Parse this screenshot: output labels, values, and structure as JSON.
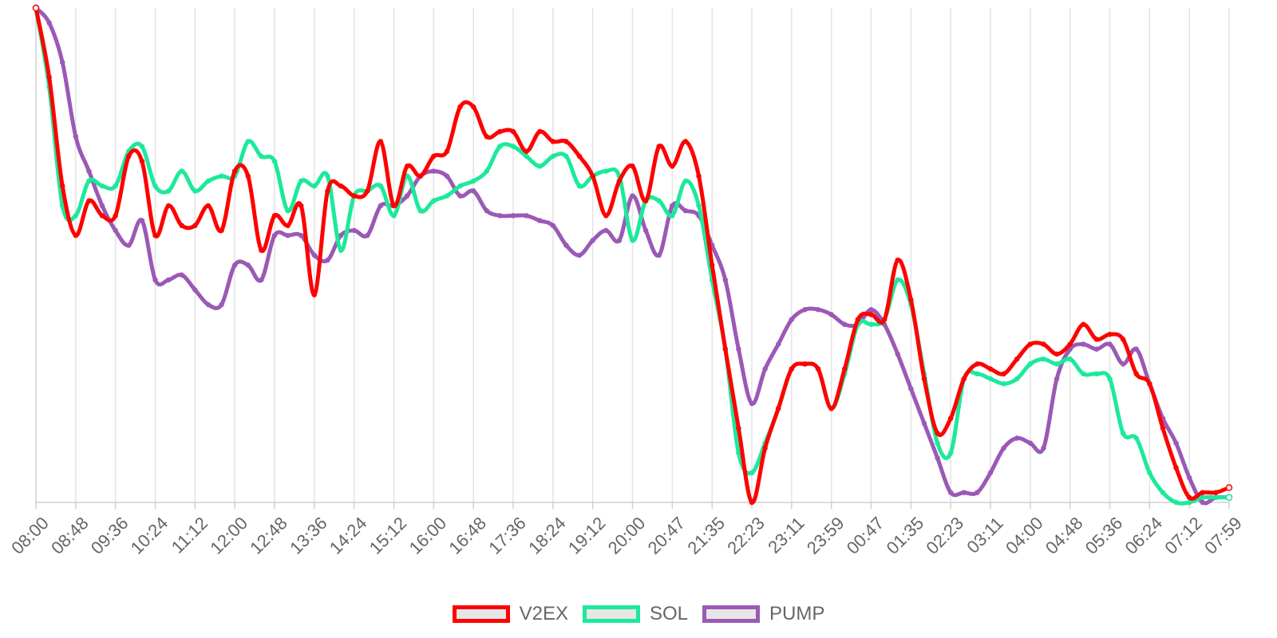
{
  "chart_data": {
    "type": "line",
    "x_ticks": [
      "08:00",
      "08:48",
      "09:36",
      "10:24",
      "11:12",
      "12:00",
      "12:48",
      "13:36",
      "14:24",
      "15:12",
      "16:00",
      "16:48",
      "17:36",
      "18:24",
      "19:12",
      "20:00",
      "20:47",
      "21:35",
      "22:23",
      "23:11",
      "23:59",
      "00:47",
      "01:35",
      "02:23",
      "03:11",
      "04:00",
      "04:48",
      "05:36",
      "06:24",
      "07:12",
      "07:59"
    ],
    "grid": true,
    "legend_position": "bottom",
    "series": [
      {
        "name": "V2EX",
        "color": "#ff0000",
        "values": [
          1.0,
          0.86,
          0.64,
          0.54,
          0.61,
          0.58,
          0.58,
          0.7,
          0.69,
          0.54,
          0.6,
          0.56,
          0.56,
          0.6,
          0.55,
          0.67,
          0.66,
          0.51,
          0.58,
          0.56,
          0.6,
          0.42,
          0.63,
          0.64,
          0.62,
          0.63,
          0.73,
          0.6,
          0.68,
          0.66,
          0.7,
          0.71,
          0.8,
          0.8,
          0.74,
          0.75,
          0.75,
          0.71,
          0.75,
          0.73,
          0.73,
          0.7,
          0.66,
          0.58,
          0.65,
          0.68,
          0.61,
          0.72,
          0.68,
          0.73,
          0.66,
          0.48,
          0.31,
          0.15,
          0.0,
          0.11,
          0.19,
          0.27,
          0.28,
          0.27,
          0.19,
          0.27,
          0.37,
          0.38,
          0.37,
          0.49,
          0.41,
          0.25,
          0.14,
          0.17,
          0.25,
          0.28,
          0.27,
          0.26,
          0.29,
          0.32,
          0.32,
          0.3,
          0.32,
          0.36,
          0.33,
          0.34,
          0.33,
          0.26,
          0.24,
          0.15,
          0.07,
          0.01,
          0.02,
          0.02,
          0.03
        ],
        "points_markers": true
      },
      {
        "name": "SOL",
        "color": "#1de99b",
        "values": [
          1.0,
          0.84,
          0.6,
          0.58,
          0.65,
          0.64,
          0.64,
          0.71,
          0.72,
          0.64,
          0.63,
          0.67,
          0.63,
          0.65,
          0.66,
          0.66,
          0.73,
          0.7,
          0.69,
          0.59,
          0.65,
          0.64,
          0.66,
          0.51,
          0.62,
          0.63,
          0.64,
          0.58,
          0.66,
          0.59,
          0.61,
          0.62,
          0.64,
          0.65,
          0.67,
          0.72,
          0.72,
          0.7,
          0.68,
          0.7,
          0.7,
          0.64,
          0.66,
          0.67,
          0.66,
          0.53,
          0.61,
          0.61,
          0.58,
          0.65,
          0.6,
          0.45,
          0.31,
          0.1,
          0.06,
          0.12,
          0.19,
          0.27,
          0.28,
          0.27,
          0.19,
          0.26,
          0.36,
          0.36,
          0.37,
          0.45,
          0.4,
          0.26,
          0.12,
          0.1,
          0.25,
          0.26,
          0.25,
          0.24,
          0.25,
          0.28,
          0.29,
          0.28,
          0.29,
          0.26,
          0.26,
          0.25,
          0.14,
          0.13,
          0.06,
          0.02,
          0.0,
          0.0,
          0.01,
          0.01,
          0.01
        ],
        "points_markers": true
      },
      {
        "name": "PUMP",
        "color": "#9b59b6",
        "values": [
          1.0,
          0.97,
          0.89,
          0.74,
          0.67,
          0.6,
          0.55,
          0.52,
          0.57,
          0.45,
          0.45,
          0.46,
          0.43,
          0.4,
          0.4,
          0.48,
          0.48,
          0.45,
          0.54,
          0.54,
          0.54,
          0.5,
          0.49,
          0.54,
          0.55,
          0.54,
          0.6,
          0.6,
          0.62,
          0.66,
          0.67,
          0.66,
          0.62,
          0.63,
          0.59,
          0.58,
          0.58,
          0.58,
          0.57,
          0.56,
          0.52,
          0.5,
          0.53,
          0.55,
          0.53,
          0.62,
          0.55,
          0.5,
          0.6,
          0.59,
          0.58,
          0.52,
          0.45,
          0.31,
          0.2,
          0.27,
          0.32,
          0.37,
          0.39,
          0.39,
          0.38,
          0.36,
          0.36,
          0.39,
          0.36,
          0.3,
          0.23,
          0.16,
          0.09,
          0.02,
          0.02,
          0.02,
          0.06,
          0.11,
          0.13,
          0.12,
          0.11,
          0.25,
          0.31,
          0.32,
          0.31,
          0.32,
          0.28,
          0.31,
          0.24,
          0.17,
          0.12,
          0.05,
          0.0,
          0.01,
          0.01
        ],
        "points_markers": true
      }
    ]
  },
  "legend": {
    "items": [
      {
        "label": "V2EX",
        "color": "#ff0000"
      },
      {
        "label": "SOL",
        "color": "#1de99b"
      },
      {
        "label": "PUMP",
        "color": "#9b59b6"
      }
    ]
  }
}
